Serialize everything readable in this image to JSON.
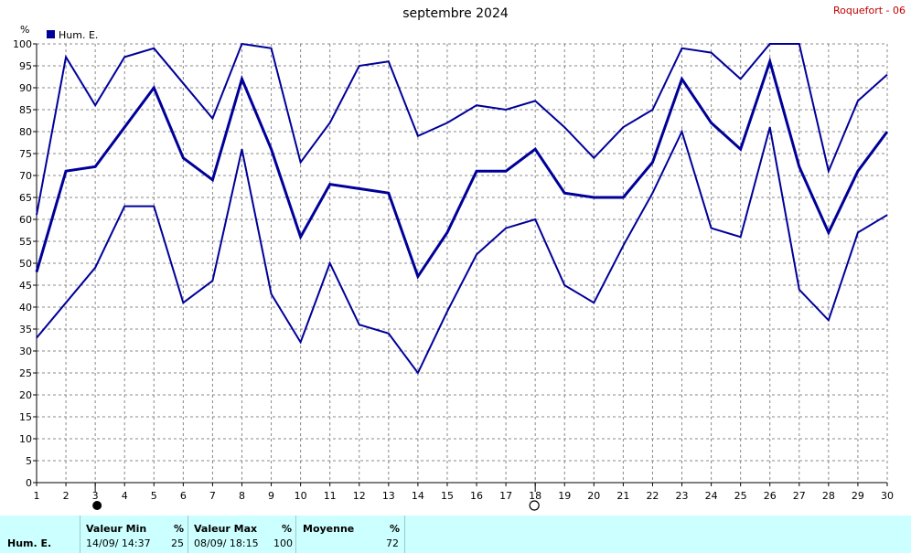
{
  "header": {
    "title": "septembre 2024",
    "station": "Roquefort - 06",
    "unit_label": "%"
  },
  "legend": {
    "label": "Hum. E.",
    "color": "#000099"
  },
  "colors": {
    "line": "#000099",
    "grid": "#888888",
    "axis": "#000000"
  },
  "moon_phases": [
    {
      "day": 3,
      "phase": "new-moon"
    },
    {
      "day": 18,
      "phase": "full-moon"
    }
  ],
  "chart_data": {
    "type": "line",
    "x": [
      1,
      2,
      3,
      4,
      5,
      6,
      7,
      8,
      9,
      10,
      11,
      12,
      13,
      14,
      15,
      16,
      17,
      18,
      19,
      20,
      21,
      22,
      23,
      24,
      25,
      26,
      27,
      28,
      29,
      30
    ],
    "ylim": [
      0,
      100
    ],
    "yticks": [
      0,
      5,
      10,
      15,
      20,
      25,
      30,
      35,
      40,
      45,
      50,
      55,
      60,
      65,
      70,
      75,
      80,
      85,
      90,
      95,
      100
    ],
    "ylabel": "%",
    "grid": true,
    "legend_position": "top-left",
    "series": [
      {
        "name": "Hum. E.",
        "role": "max",
        "values": [
          61,
          97,
          86,
          97,
          99,
          91,
          83,
          100,
          99,
          73,
          82,
          95,
          96,
          79,
          82,
          86,
          85,
          87,
          81,
          74,
          81,
          85,
          99,
          98,
          92,
          100,
          100,
          71,
          87,
          93
        ]
      },
      {
        "name": "Hum. E.",
        "role": "mean",
        "values": [
          48,
          71,
          72,
          81,
          90,
          74,
          69,
          92,
          76,
          56,
          68,
          67,
          66,
          47,
          57,
          71,
          71,
          76,
          66,
          65,
          65,
          73,
          92,
          82,
          76,
          96,
          72,
          57,
          71,
          80
        ]
      },
      {
        "name": "Hum. E.",
        "role": "min",
        "values": [
          33,
          41,
          49,
          63,
          63,
          41,
          46,
          76,
          43,
          32,
          50,
          36,
          34,
          25,
          39,
          52,
          58,
          60,
          45,
          41,
          54,
          66,
          80,
          58,
          56,
          81,
          44,
          37,
          57,
          61
        ]
      }
    ]
  },
  "footer": {
    "row_label": "Hum. E.",
    "min": {
      "header": "Valeur Min",
      "unit": "%",
      "date": "14/09/ 14:37",
      "value": "25"
    },
    "max": {
      "header": "Valeur Max",
      "unit": "%",
      "date": "08/09/ 18:15",
      "value": "100"
    },
    "avg": {
      "header": "Moyenne",
      "unit": "%",
      "value": "72"
    }
  }
}
